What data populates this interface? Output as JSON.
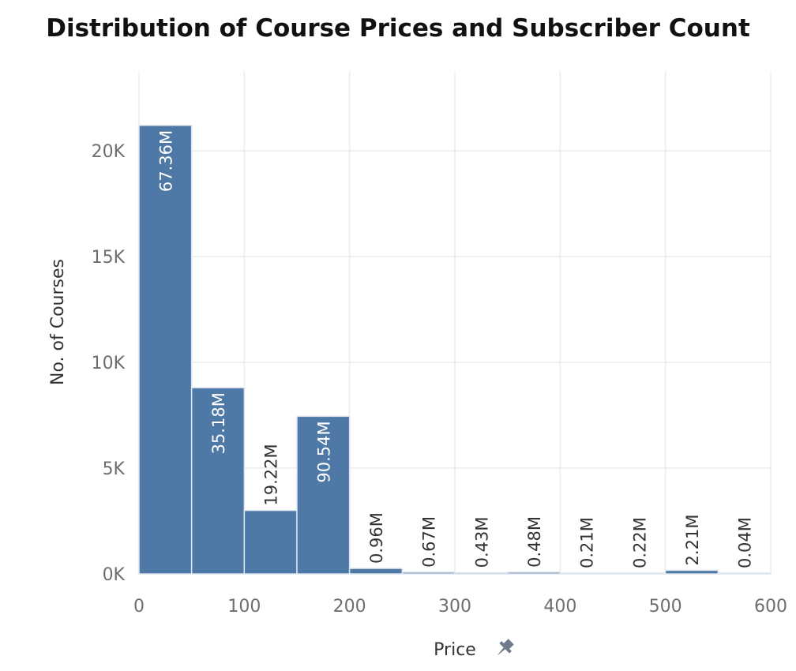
{
  "chart_data": {
    "type": "bar",
    "title": "Distribution of Course Prices and Subscriber Count",
    "xlabel": "Price",
    "ylabel": "No. of Courses",
    "bin_width": 50,
    "bins": [
      {
        "start": 0,
        "count": 21200,
        "subscribers_label": "67.36M"
      },
      {
        "start": 50,
        "count": 8800,
        "subscribers_label": "35.18M"
      },
      {
        "start": 100,
        "count": 3000,
        "subscribers_label": "19.22M"
      },
      {
        "start": 150,
        "count": 7450,
        "subscribers_label": "90.54M"
      },
      {
        "start": 200,
        "count": 260,
        "subscribers_label": "0.96M"
      },
      {
        "start": 250,
        "count": 80,
        "subscribers_label": "0.67M"
      },
      {
        "start": 300,
        "count": 60,
        "subscribers_label": "0.43M"
      },
      {
        "start": 350,
        "count": 80,
        "subscribers_label": "0.48M"
      },
      {
        "start": 400,
        "count": 20,
        "subscribers_label": "0.21M"
      },
      {
        "start": 450,
        "count": 20,
        "subscribers_label": "0.22M"
      },
      {
        "start": 500,
        "count": 170,
        "subscribers_label": "2.21M"
      },
      {
        "start": 550,
        "count": 10,
        "subscribers_label": "0.04M"
      }
    ],
    "x_ticks": [
      {
        "value": 0,
        "label": "0"
      },
      {
        "value": 100,
        "label": "100"
      },
      {
        "value": 200,
        "label": "200"
      },
      {
        "value": 300,
        "label": "300"
      },
      {
        "value": 400,
        "label": "400"
      },
      {
        "value": 500,
        "label": "500"
      },
      {
        "value": 600,
        "label": "600"
      }
    ],
    "y_ticks": [
      {
        "value": 0,
        "label": "0K"
      },
      {
        "value": 5000,
        "label": "5K"
      },
      {
        "value": 10000,
        "label": "10K"
      },
      {
        "value": 15000,
        "label": "15K"
      },
      {
        "value": 20000,
        "label": "20K"
      }
    ],
    "xlim": [
      0,
      600
    ],
    "ylim": [
      0,
      25000
    ],
    "grid": true,
    "legend": "none",
    "x_axis_icon": "pin-icon",
    "colors": {
      "bar": "#4e79a7",
      "bar_edge": "#dfe6ee",
      "grid": "#ececec",
      "label_inside": "#ffffff",
      "label_outside": "#333333"
    }
  }
}
